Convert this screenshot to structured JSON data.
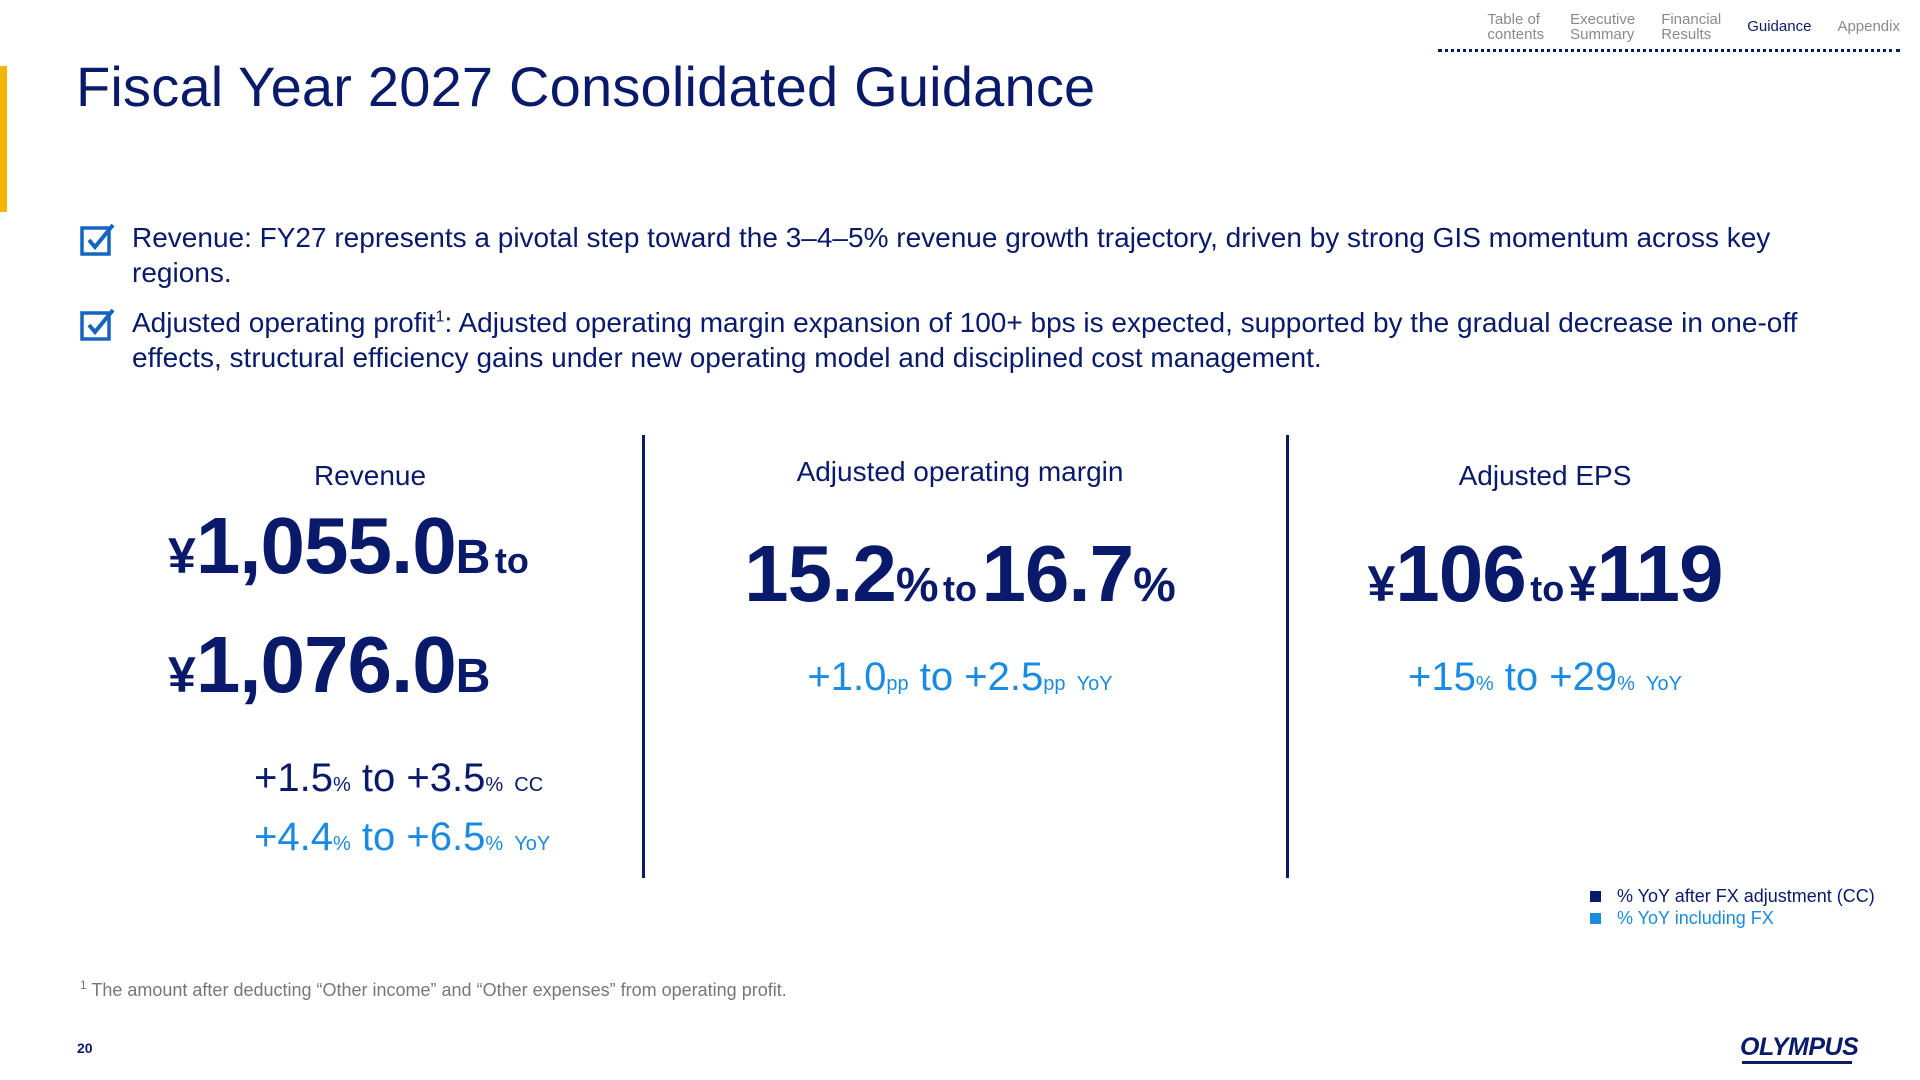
{
  "nav": {
    "items": [
      {
        "label": "Table of\ncontents"
      },
      {
        "label": "Executive\nSummary"
      },
      {
        "label": "Financial\nResults"
      },
      {
        "label": "Guidance"
      },
      {
        "label": "Appendix"
      }
    ],
    "active": "Guidance"
  },
  "title": "Fiscal Year 2027 Consolidated Guidance",
  "bullets": {
    "b1": "Revenue: FY27 represents a pivotal step toward the 3–4–5% revenue growth trajectory, driven by strong GIS momentum across key regions.",
    "b2_pre": "Adjusted operating profit",
    "b2_sup": "1",
    "b2_post": ": Adjusted operating margin expansion of 100+ bps is expected, supported by the gradual decrease in one-off effects, structural efficiency gains under new operating model and disciplined cost management."
  },
  "revenue": {
    "label": "Revenue",
    "yen": "¥",
    "low": "1,055.0",
    "high": "1,076.0",
    "unit": "B",
    "to": "to",
    "cc_low": "+1.5",
    "cc_high": "+3.5",
    "cc_label": "CC",
    "yoy_low": "+4.4",
    "yoy_high": "+6.5",
    "yoy_label": "YoY",
    "pct": "%",
    "to_small": "to"
  },
  "margin": {
    "label": "Adjusted operating margin",
    "low": "15.2",
    "high": "16.7",
    "pct": "%",
    "to": "to",
    "yoy_low": "+1.0",
    "yoy_high": "+2.5",
    "pp": "pp",
    "yoy_label": "YoY",
    "to_small": "to"
  },
  "eps": {
    "label": "Adjusted EPS",
    "yen": "¥",
    "low": "106",
    "high": "119",
    "to": "to",
    "yoy_low": "+15",
    "yoy_high": "+29",
    "pct": "%",
    "yoy_label": "YoY",
    "to_small": "to"
  },
  "legend": {
    "cc": "% YoY after FX adjustment (CC)",
    "fx": "% YoY including FX"
  },
  "colors": {
    "navy": "#0a1a6b",
    "light_blue": "#1a8be0",
    "accent_yellow": "#f2b705"
  },
  "footnote": {
    "sup": "1",
    "text": " The amount after deducting “Other income” and “Other expenses” from operating profit."
  },
  "page_number": "20",
  "logo": "OLYMPUS"
}
